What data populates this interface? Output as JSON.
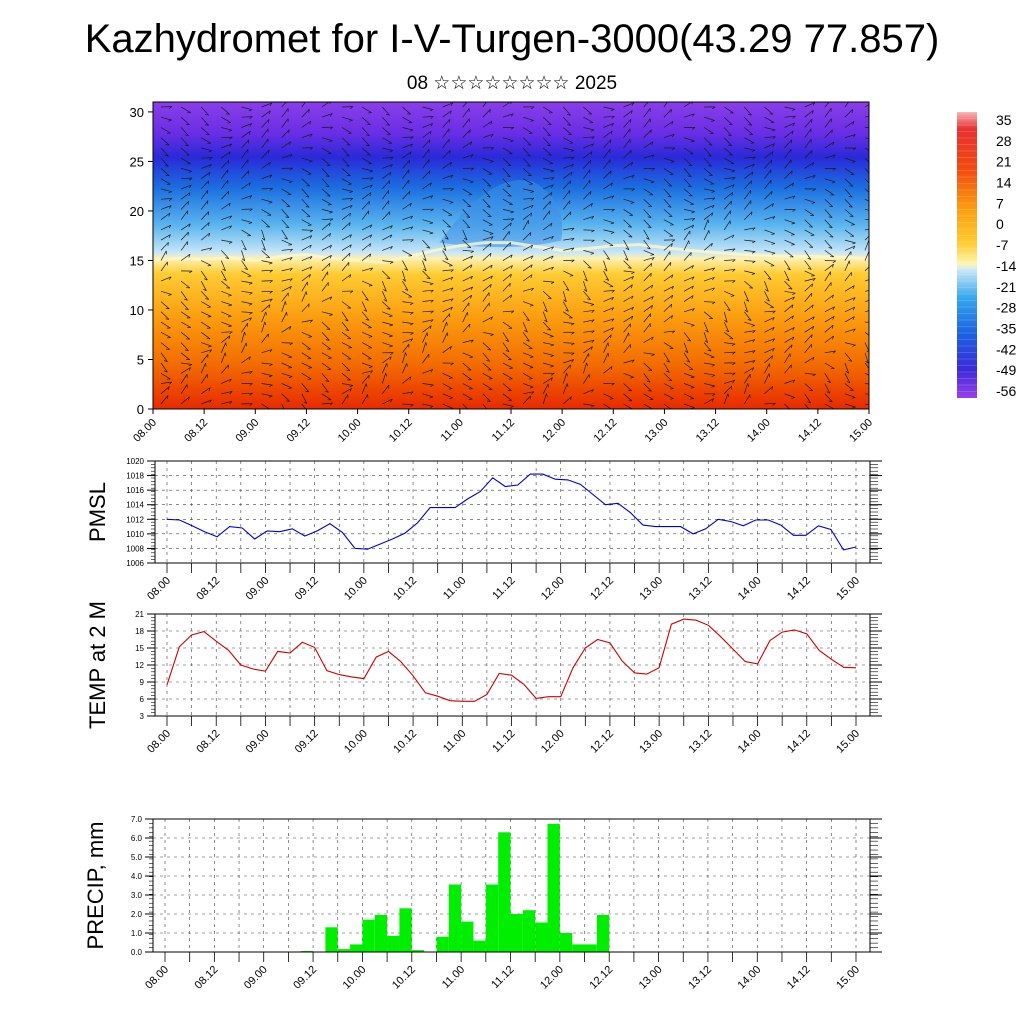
{
  "title": "Kazhydromet for I-V-Turgen-3000(43.29 77.857)",
  "subtitle": "08 ☆☆☆☆☆☆☆☆ 2025",
  "chart_data": [
    {
      "type": "heatmap",
      "title": "",
      "ylabel": "",
      "x_ticks": [
        "08.00",
        "08.12",
        "09.00",
        "09.12",
        "10.00",
        "10.12",
        "11.00",
        "11.12",
        "12.00",
        "12.12",
        "13.00",
        "13.12",
        "14.00",
        "14.12",
        "15.00"
      ],
      "ylim": [
        0,
        31
      ],
      "y_ticks": [
        0,
        5,
        10,
        15,
        20,
        25,
        30
      ],
      "colorbar_labels": [
        "35",
        "28",
        "21",
        "14",
        "7",
        "0",
        "-7",
        "-14",
        "-21",
        "-28",
        "-35",
        "-42",
        "-49",
        "-56"
      ],
      "colorbar_range": [
        -60,
        38
      ],
      "freezing_level": [
        15.0,
        15.2,
        15.1,
        15.3,
        15.0,
        15.4,
        15.6,
        15.2,
        15.0,
        14.8,
        15.4,
        16.0,
        16.5,
        16.8,
        16.8,
        16.4,
        16.0,
        16.2,
        16.5,
        16.6,
        16.3,
        16.0,
        15.8,
        15.6,
        15.5,
        15.4,
        15.4,
        15.3,
        15.2
      ],
      "colors": {
        "warm": "#e62a00",
        "mid": "#ffcc33",
        "cold": "#1a7fe6",
        "upper": "#7a2ee6"
      }
    },
    {
      "type": "line",
      "ylabel": "PMSL",
      "ylim": [
        1006,
        1020
      ],
      "y_ticks": [
        "1006",
        "1008",
        "1010",
        "1012",
        "1014",
        "1016",
        "1018",
        "1020"
      ],
      "x_ticks": [
        "08.00",
        "08.12",
        "09.00",
        "09.12",
        "10.00",
        "10.12",
        "11.00",
        "11.12",
        "12.00",
        "12.12",
        "13.00",
        "13.12",
        "14.00",
        "14.12",
        "15.00"
      ],
      "color": "#0000cc",
      "values": [
        1012.0,
        1011.9,
        1011.1,
        1010.3,
        1009.6,
        1011.0,
        1010.8,
        1009.3,
        1010.4,
        1010.3,
        1010.7,
        1009.7,
        1010.4,
        1011.4,
        1010.2,
        1008.0,
        1007.9,
        1008.6,
        1009.3,
        1010.1,
        1011.5,
        1013.6,
        1013.6,
        1013.6,
        1014.8,
        1015.8,
        1017.7,
        1016.5,
        1016.7,
        1018.2,
        1018.2,
        1017.5,
        1017.4,
        1016.8,
        1015.4,
        1014.0,
        1014.2,
        1012.9,
        1011.2,
        1011.0,
        1011.0,
        1011.0,
        1010.0,
        1010.7,
        1012.0,
        1011.7,
        1011.1,
        1011.9,
        1011.9,
        1011.2,
        1009.8,
        1009.8,
        1011.1,
        1010.6,
        1007.8,
        1008.2
      ]
    },
    {
      "type": "line",
      "ylabel": "TEMP at 2 M",
      "ylim": [
        3,
        21
      ],
      "y_ticks": [
        "3",
        "6",
        "9",
        "12",
        "15",
        "18",
        "21"
      ],
      "x_ticks": [
        "08.00",
        "08.12",
        "09.00",
        "09.12",
        "10.00",
        "10.12",
        "11.00",
        "11.12",
        "12.00",
        "12.12",
        "13.00",
        "13.12",
        "14.00",
        "14.12",
        "15.00"
      ],
      "color": "#cc0000",
      "values": [
        8.5,
        15.2,
        17.3,
        17.9,
        16.2,
        14.6,
        12.0,
        11.3,
        10.9,
        14.4,
        14.1,
        16.0,
        15.1,
        11.0,
        10.3,
        9.9,
        9.6,
        13.4,
        14.4,
        12.6,
        10.1,
        7.1,
        6.5,
        5.7,
        5.6,
        5.6,
        6.8,
        10.5,
        10.2,
        8.6,
        6.1,
        6.4,
        6.4,
        11.5,
        15.0,
        16.5,
        15.9,
        12.7,
        10.6,
        10.4,
        11.5,
        19.2,
        20.1,
        19.9,
        19.0,
        17.0,
        14.8,
        12.6,
        12.2,
        16.3,
        17.8,
        18.2,
        17.5,
        14.6,
        13.0,
        11.6,
        11.5
      ]
    },
    {
      "type": "bar",
      "ylabel": "PRECIP, mm",
      "ylim": [
        0,
        7
      ],
      "y_ticks": [
        "0.0",
        "1.0",
        "2.0",
        "3.0",
        "4.0",
        "5.0",
        "6.0",
        "7.0"
      ],
      "x_ticks": [
        "08.00",
        "08.12",
        "09.00",
        "09.12",
        "10.00",
        "10.12",
        "11.00",
        "11.12",
        "12.00",
        "12.12",
        "13.00",
        "13.12",
        "14.00",
        "14.12",
        "15.00"
      ],
      "color": "#00ee00",
      "values": [
        0,
        0,
        0,
        0,
        0,
        0,
        0,
        0,
        0,
        0,
        0,
        0.05,
        0,
        1.3,
        0.15,
        0.4,
        1.7,
        1.95,
        0.85,
        2.3,
        0.1,
        0,
        0.8,
        3.55,
        1.6,
        0.6,
        3.55,
        6.3,
        2.0,
        2.2,
        1.55,
        6.75,
        1.0,
        0.4,
        0.4,
        1.95,
        0,
        0,
        0,
        0,
        0,
        0,
        0,
        0,
        0,
        0,
        0,
        0,
        0,
        0,
        0,
        0,
        0,
        0,
        0,
        0
      ]
    }
  ]
}
